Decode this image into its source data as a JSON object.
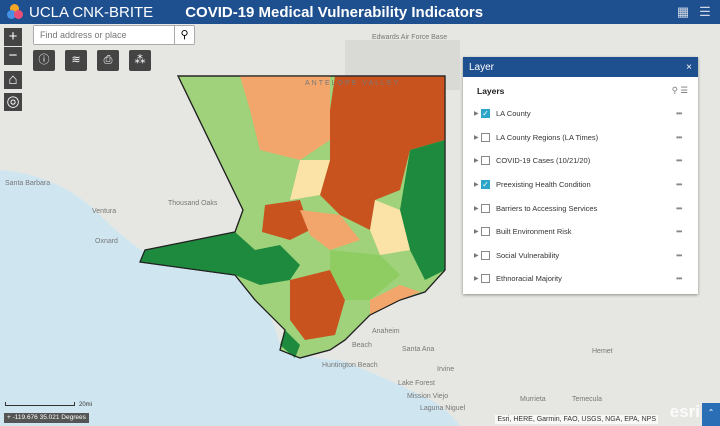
{
  "header": {
    "app_title": "UCLA CNK-BRITE",
    "page_title": "COVID-19 Medical Vulnerability Indicators"
  },
  "search": {
    "placeholder": "Find address or place"
  },
  "map_labels": [
    "Edwards Air Force Base",
    "ANTELOPE VALLEY",
    "Santa Barbara",
    "Ventura",
    "Oxnard",
    "Thousand Oaks",
    "Anaheim",
    "Santa Ana",
    "Irvine",
    "Beach",
    "Huntington Beach",
    "Lake Forest",
    "Mission Viejo",
    "Laguna Niguel",
    "Murrieta",
    "Hemet",
    "Temecula"
  ],
  "layer_panel": {
    "title": "Layer",
    "close": "×",
    "heading": "Layers",
    "items": [
      {
        "label": "LA County",
        "checked": true
      },
      {
        "label": "LA County Regions (LA Times)",
        "checked": false
      },
      {
        "label": "COVID-19 Cases (10/21/20)",
        "checked": false
      },
      {
        "label": "Preexisting Health Condition",
        "checked": true
      },
      {
        "label": "Barriers to Accessing Services",
        "checked": false
      },
      {
        "label": "Built Environment Risk",
        "checked": false
      },
      {
        "label": "Social Vulnerability",
        "checked": false
      },
      {
        "label": "Ethnoracial Majority",
        "checked": false
      }
    ]
  },
  "scale": {
    "label": "20mi"
  },
  "coordinates": "-119.676 35.021 Degrees",
  "attribution": "Esri, HERE, Garmin, FAO, USGS, NGA, EPA, NPS",
  "esri_logo": "esri",
  "colors": {
    "header": "#1e4f8f",
    "high": "#c9531f",
    "med_high": "#f39c5c",
    "medium": "#fbe3a8",
    "med_low": "#8fcc62",
    "low": "#1e8a3e",
    "water": "#cfe6f1"
  }
}
